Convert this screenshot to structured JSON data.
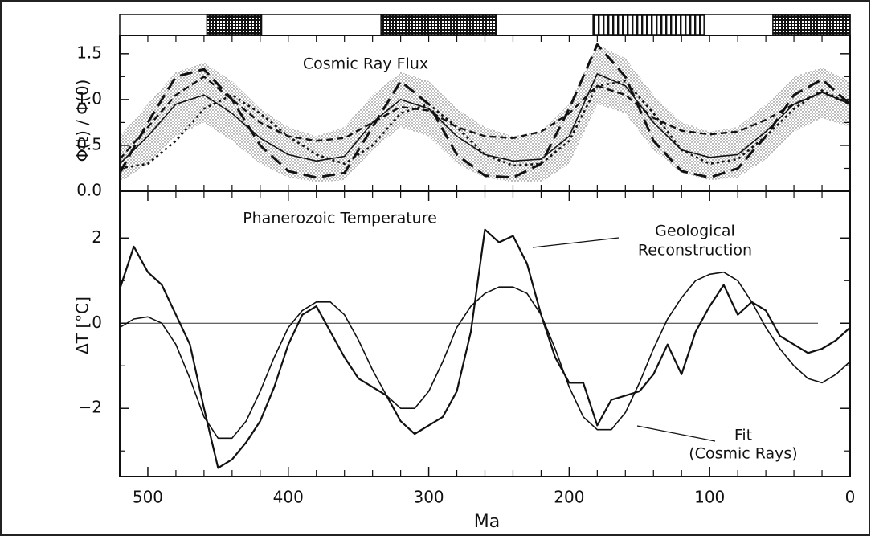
{
  "chart_data": [
    {
      "type": "line",
      "ylabel": "Φ(t) / Φ(0)",
      "xlim": [
        520,
        0
      ],
      "ylim": [
        0,
        1.7
      ],
      "yticks": [
        {
          "value": 0,
          "label": "0.0"
        },
        0.5,
        {
          "value": 1,
          "label": "1.0"
        },
        1.5
      ],
      "yticks_minor": [
        0.25,
        0.75,
        1.25
      ],
      "xticks_minor": [
        520,
        500,
        480,
        460,
        440,
        420,
        400,
        380,
        360,
        340,
        320,
        300,
        280,
        260,
        240,
        220,
        200,
        180,
        160,
        140,
        120,
        100,
        80,
        60,
        40,
        20
      ],
      "annotations": [
        "Cosmic Ray Flux"
      ],
      "bands": [
        {
          "start": 458,
          "end": 419,
          "pattern": "grid"
        },
        {
          "start": 334,
          "end": 252,
          "pattern": "grid"
        },
        {
          "start": 183,
          "end": 104,
          "pattern": "vertical"
        },
        {
          "start": 55,
          "end": 0,
          "pattern": "grid"
        }
      ],
      "x": [
        520,
        500,
        480,
        460,
        440,
        420,
        400,
        380,
        360,
        340,
        320,
        300,
        280,
        260,
        240,
        220,
        200,
        180,
        160,
        140,
        120,
        100,
        80,
        60,
        40,
        20,
        0
      ],
      "band_upper": [
        0.6,
        0.95,
        1.3,
        1.4,
        1.2,
        0.9,
        0.7,
        0.6,
        0.7,
        1.05,
        1.3,
        1.2,
        0.9,
        0.7,
        0.6,
        0.65,
        0.95,
        1.6,
        1.45,
        1.05,
        0.75,
        0.65,
        0.7,
        0.95,
        1.25,
        1.35,
        1.2
      ],
      "band_lower": [
        0.1,
        0.3,
        0.6,
        0.75,
        0.55,
        0.3,
        0.15,
        0.1,
        0.12,
        0.45,
        0.7,
        0.6,
        0.3,
        0.15,
        0.1,
        0.1,
        0.3,
        0.95,
        0.85,
        0.45,
        0.2,
        0.12,
        0.15,
        0.35,
        0.65,
        0.8,
        0.7
      ],
      "series": [
        {
          "style": "solid",
          "color": "#111111",
          "values": [
            0.3,
            0.6,
            0.95,
            1.05,
            0.85,
            0.58,
            0.4,
            0.33,
            0.38,
            0.75,
            1.0,
            0.9,
            0.6,
            0.4,
            0.33,
            0.35,
            0.6,
            1.28,
            1.15,
            0.75,
            0.45,
            0.37,
            0.4,
            0.65,
            0.95,
            1.08,
            0.95
          ]
        },
        {
          "style": "long-dash",
          "color": "#111111",
          "values": [
            0.2,
            0.75,
            1.25,
            1.33,
            1.0,
            0.5,
            0.22,
            0.15,
            0.2,
            0.7,
            1.2,
            0.95,
            0.4,
            0.17,
            0.15,
            0.3,
            0.9,
            1.6,
            1.25,
            0.55,
            0.22,
            0.15,
            0.25,
            0.6,
            1.05,
            1.22,
            0.95
          ]
        },
        {
          "style": "dash",
          "color": "#111111",
          "values": [
            0.35,
            0.7,
            1.05,
            1.25,
            1.0,
            0.75,
            0.6,
            0.55,
            0.58,
            0.75,
            0.92,
            0.88,
            0.7,
            0.6,
            0.58,
            0.65,
            0.85,
            1.15,
            1.05,
            0.8,
            0.66,
            0.62,
            0.65,
            0.78,
            0.95,
            1.08,
            0.95
          ]
        },
        {
          "style": "dot",
          "color": "#111111",
          "values": [
            0.25,
            0.3,
            0.55,
            0.9,
            1.05,
            0.85,
            0.6,
            0.4,
            0.3,
            0.5,
            0.85,
            0.95,
            0.7,
            0.4,
            0.28,
            0.3,
            0.55,
            1.15,
            1.2,
            0.85,
            0.45,
            0.3,
            0.35,
            0.6,
            0.9,
            1.1,
            0.95
          ]
        }
      ]
    },
    {
      "type": "line",
      "ylabel": "ΔT [°C]",
      "xlabel": "Ma",
      "xlim": [
        520,
        0
      ],
      "ylim": [
        -3.6,
        3.1
      ],
      "xticks": [
        500,
        400,
        300,
        200,
        100,
        0
      ],
      "xticks_minor": [
        520,
        480,
        460,
        440,
        420,
        380,
        360,
        340,
        320,
        280,
        260,
        240,
        220,
        180,
        160,
        140,
        120,
        80,
        60,
        40,
        20
      ],
      "yticks": [
        {
          "value": -2,
          "label": "−2"
        },
        0,
        2
      ],
      "yticks_minor": [
        -3,
        -1,
        1
      ],
      "zero_line": true,
      "annotations": [
        "Phanerozoic Temperature",
        "Geological",
        "Reconstruction",
        "Fit",
        "(Cosmic Rays)"
      ],
      "x": [
        520,
        510,
        500,
        490,
        480,
        470,
        460,
        450,
        440,
        430,
        420,
        410,
        400,
        390,
        380,
        370,
        360,
        350,
        340,
        330,
        320,
        310,
        300,
        290,
        280,
        270,
        260,
        250,
        240,
        230,
        220,
        210,
        200,
        190,
        180,
        170,
        160,
        150,
        140,
        130,
        120,
        110,
        100,
        90,
        80,
        70,
        60,
        50,
        40,
        30,
        20,
        10,
        0
      ],
      "series": [
        {
          "style": "solid-thick",
          "color": "#111111",
          "values": [
            0.8,
            1.8,
            1.2,
            0.9,
            0.2,
            -0.5,
            -2.0,
            -3.4,
            -3.2,
            -2.8,
            -2.3,
            -1.5,
            -0.5,
            0.2,
            0.4,
            -0.2,
            -0.8,
            -1.3,
            -1.5,
            -1.7,
            -2.3,
            -2.6,
            -2.4,
            -2.2,
            -1.6,
            -0.2,
            2.2,
            1.9,
            2.05,
            1.4,
            0.2,
            -0.8,
            -1.4,
            -1.4,
            -2.4,
            -1.8,
            -1.7,
            -1.6,
            -1.2,
            -0.5,
            -1.2,
            -0.2,
            0.4,
            0.9,
            0.2,
            0.5,
            0.3,
            -0.3,
            -0.5,
            -0.7,
            -0.6,
            -0.4,
            -0.1
          ]
        },
        {
          "style": "solid",
          "color": "#111111",
          "values": [
            -0.1,
            0.1,
            0.15,
            0,
            -0.5,
            -1.3,
            -2.2,
            -2.7,
            -2.7,
            -2.3,
            -1.6,
            -0.8,
            -0.1,
            0.3,
            0.5,
            0.5,
            0.2,
            -0.4,
            -1.1,
            -1.7,
            -2.0,
            -2.0,
            -1.6,
            -0.9,
            -0.1,
            0.4,
            0.7,
            0.85,
            0.85,
            0.7,
            0.2,
            -0.6,
            -1.5,
            -2.2,
            -2.5,
            -2.5,
            -2.1,
            -1.4,
            -0.6,
            0.1,
            0.6,
            1.0,
            1.15,
            1.2,
            1.0,
            0.5,
            -0.1,
            -0.6,
            -1.0,
            -1.3,
            -1.4,
            -1.2,
            -0.9
          ]
        }
      ]
    }
  ]
}
